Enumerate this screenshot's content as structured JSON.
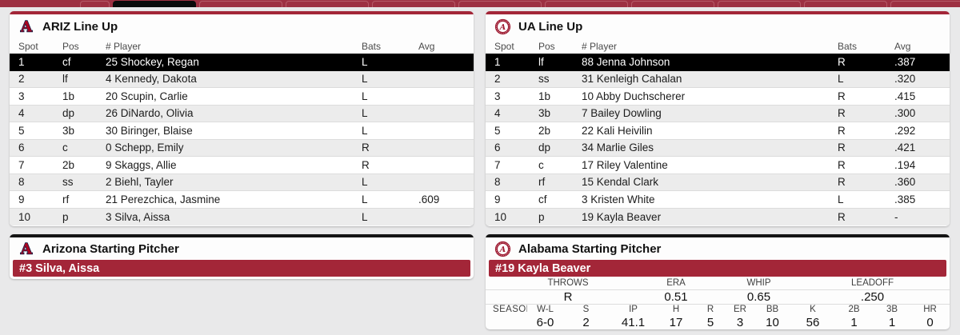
{
  "colors": {
    "crimson": "#A32638",
    "maroon_bar": "#9D3042",
    "tab_border": "#B55A68",
    "active_tab": "#0A0A0A",
    "dark_strip": "#141414",
    "arizona_red": "#AB0520",
    "arizona_navy": "#0C234B",
    "alabama_crimson": "#9E1B32",
    "selected_row_bg": "#000000"
  },
  "top_bar": {
    "tab_count": 11,
    "active_tab_index": 1
  },
  "lineup_columns": [
    "Spot",
    "Pos",
    "# Player",
    "Bats",
    "Avg"
  ],
  "panels": {
    "ariz_lineup": {
      "title": "ARIZ Line Up",
      "rows": [
        {
          "spot": "1",
          "pos": "cf",
          "player": "25 Shockey, Regan",
          "bats": "L",
          "avg": "",
          "selected": true
        },
        {
          "spot": "2",
          "pos": "lf",
          "player": "4 Kennedy, Dakota",
          "bats": "L",
          "avg": ""
        },
        {
          "spot": "3",
          "pos": "1b",
          "player": "20 Scupin, Carlie",
          "bats": "L",
          "avg": ""
        },
        {
          "spot": "4",
          "pos": "dp",
          "player": "26 DiNardo, Olivia",
          "bats": "L",
          "avg": ""
        },
        {
          "spot": "5",
          "pos": "3b",
          "player": "30 Biringer, Blaise",
          "bats": "L",
          "avg": ""
        },
        {
          "spot": "6",
          "pos": "c",
          "player": "0 Schepp, Emily",
          "bats": "R",
          "avg": ""
        },
        {
          "spot": "7",
          "pos": "2b",
          "player": "9 Skaggs, Allie",
          "bats": "R",
          "avg": ""
        },
        {
          "spot": "8",
          "pos": "ss",
          "player": "2 Biehl, Tayler",
          "bats": "L",
          "avg": ""
        },
        {
          "spot": "9",
          "pos": "rf",
          "player": "21 Perezchica, Jasmine",
          "bats": "L",
          "avg": ".609"
        },
        {
          "spot": "10",
          "pos": "p",
          "player": "3 Silva, Aissa",
          "bats": "L",
          "avg": ""
        }
      ]
    },
    "ua_lineup": {
      "title": "UA Line Up",
      "rows": [
        {
          "spot": "1",
          "pos": "lf",
          "player": "88 Jenna Johnson",
          "bats": "R",
          "avg": ".387",
          "selected": true
        },
        {
          "spot": "2",
          "pos": "ss",
          "player": "31 Kenleigh Cahalan",
          "bats": "L",
          "avg": ".320"
        },
        {
          "spot": "3",
          "pos": "1b",
          "player": "10 Abby Duchscherer",
          "bats": "R",
          "avg": ".415"
        },
        {
          "spot": "4",
          "pos": "3b",
          "player": "7 Bailey Dowling",
          "bats": "R",
          "avg": ".300"
        },
        {
          "spot": "5",
          "pos": "2b",
          "player": "22 Kali Heivilin",
          "bats": "R",
          "avg": ".292"
        },
        {
          "spot": "6",
          "pos": "dp",
          "player": "34 Marlie Giles",
          "bats": "R",
          "avg": ".421"
        },
        {
          "spot": "7",
          "pos": "c",
          "player": "17 Riley Valentine",
          "bats": "R",
          "avg": ".194"
        },
        {
          "spot": "8",
          "pos": "rf",
          "player": "15 Kendal Clark",
          "bats": "R",
          "avg": ".360"
        },
        {
          "spot": "9",
          "pos": "cf",
          "player": "3 Kristen White",
          "bats": "L",
          "avg": ".385"
        },
        {
          "spot": "10",
          "pos": "p",
          "player": "19 Kayla Beaver",
          "bats": "R",
          "avg": "-"
        }
      ]
    },
    "ariz_pitcher": {
      "title": "Arizona Starting Pitcher",
      "name_bar": "#3 Silva, Aissa"
    },
    "ua_pitcher": {
      "title": "Alabama Starting Pitcher",
      "name_bar": "#19 Kayla Beaver",
      "stats": {
        "throws_label": "THROWS",
        "throws": "R",
        "era_label": "ERA",
        "era": "0.51",
        "whip_label": "WHIP",
        "whip": "0.65",
        "leadoff_label": "LEADOFF",
        "leadoff": ".250",
        "season_label": "SEASON",
        "columns": [
          "W-L",
          "S",
          "IP",
          "H",
          "R",
          "ER",
          "BB",
          "K",
          "2B",
          "3B",
          "HR"
        ],
        "values": [
          "6-0",
          "2",
          "41.1",
          "17",
          "5",
          "3",
          "10",
          "56",
          "1",
          "1",
          "0"
        ]
      }
    }
  },
  "icons": {
    "arizona_logo_letter": "A",
    "alabama_logo_letter": "A"
  }
}
